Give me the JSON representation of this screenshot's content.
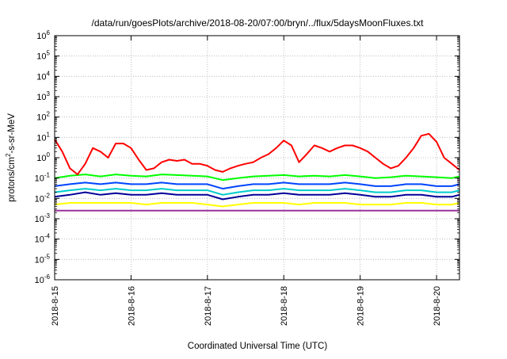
{
  "chart_data": {
    "type": "line",
    "title": "/data/run/goesPlots/archive/2018-08-20/07:00/bryn/../flux/5daysMoonFluxes.txt",
    "xlabel": "Coordinated Universal Time (UTC)",
    "ylabel": {
      "prefix": "protons/cm",
      "sup": "2",
      "suffix": "-s-sr-MeV"
    },
    "yscale": "log",
    "ylim_exp": [
      -6,
      6
    ],
    "y_ticks": [
      {
        "base": "10",
        "exp": "6"
      },
      {
        "base": "10",
        "exp": "5"
      },
      {
        "base": "10",
        "exp": "4"
      },
      {
        "base": "10",
        "exp": "3"
      },
      {
        "base": "10",
        "exp": "2"
      },
      {
        "base": "10",
        "exp": "1"
      },
      {
        "base": "10",
        "exp": "0"
      },
      {
        "base": "10",
        "exp": "-1"
      },
      {
        "base": "10",
        "exp": "-2"
      },
      {
        "base": "10",
        "exp": "-3"
      },
      {
        "base": "10",
        "exp": "-4"
      },
      {
        "base": "10",
        "exp": "-5"
      },
      {
        "base": "10",
        "exp": "-6"
      }
    ],
    "x_day_range": [
      15,
      20.3
    ],
    "x_ticks": [
      {
        "label": "2018-8-15",
        "day": 15
      },
      {
        "label": "2018-8-16",
        "day": 16
      },
      {
        "label": "2018-8-17",
        "day": 17
      },
      {
        "label": "2018-8-18",
        "day": 18
      },
      {
        "label": "2018-8-19",
        "day": 19
      },
      {
        "label": "2018-8-20",
        "day": 20
      }
    ],
    "grid": true,
    "series": [
      {
        "color": "#ff0000",
        "x": [
          15.0,
          15.1,
          15.2,
          15.3,
          15.4,
          15.5,
          15.6,
          15.7,
          15.8,
          15.9,
          16.0,
          16.1,
          16.2,
          16.3,
          16.4,
          16.5,
          16.6,
          16.7,
          16.8,
          16.9,
          17.0,
          17.1,
          17.2,
          17.3,
          17.4,
          17.5,
          17.6,
          17.7,
          17.8,
          17.9,
          18.0,
          18.1,
          18.2,
          18.3,
          18.4,
          18.5,
          18.6,
          18.7,
          18.8,
          18.9,
          19.0,
          19.1,
          19.2,
          19.3,
          19.4,
          19.5,
          19.6,
          19.7,
          19.8,
          19.9,
          20.0,
          20.1,
          20.2,
          20.3
        ],
        "y": [
          8,
          2,
          0.3,
          0.15,
          0.5,
          3,
          2,
          1,
          5,
          5,
          3,
          0.8,
          0.25,
          0.3,
          0.6,
          0.8,
          0.7,
          0.8,
          0.5,
          0.5,
          0.4,
          0.25,
          0.2,
          0.3,
          0.4,
          0.5,
          0.6,
          1,
          1.5,
          3,
          7,
          4,
          0.6,
          1.5,
          4,
          3,
          2,
          3,
          4,
          4,
          3,
          2,
          1,
          0.5,
          0.3,
          0.4,
          1,
          3,
          12,
          15,
          6,
          1,
          0.5,
          0.25
        ]
      },
      {
        "color": "#00ff00",
        "x": [
          15.0,
          15.2,
          15.4,
          15.6,
          15.8,
          16.0,
          16.2,
          16.4,
          16.6,
          16.8,
          17.0,
          17.2,
          17.4,
          17.6,
          17.8,
          18.0,
          18.2,
          18.4,
          18.6,
          18.8,
          19.0,
          19.2,
          19.4,
          19.6,
          19.8,
          20.0,
          20.2,
          20.3
        ],
        "y": [
          0.1,
          0.13,
          0.15,
          0.12,
          0.15,
          0.13,
          0.12,
          0.15,
          0.14,
          0.13,
          0.12,
          0.08,
          0.1,
          0.12,
          0.13,
          0.14,
          0.12,
          0.13,
          0.12,
          0.14,
          0.12,
          0.1,
          0.11,
          0.13,
          0.12,
          0.11,
          0.1,
          0.12
        ]
      },
      {
        "color": "#0044ff",
        "x": [
          15.0,
          15.2,
          15.4,
          15.6,
          15.8,
          16.0,
          16.2,
          16.4,
          16.6,
          16.8,
          17.0,
          17.2,
          17.4,
          17.6,
          17.8,
          18.0,
          18.2,
          18.4,
          18.6,
          18.8,
          19.0,
          19.2,
          19.4,
          19.6,
          19.8,
          20.0,
          20.2,
          20.3
        ],
        "y": [
          0.04,
          0.05,
          0.06,
          0.05,
          0.06,
          0.05,
          0.05,
          0.06,
          0.05,
          0.05,
          0.05,
          0.03,
          0.04,
          0.05,
          0.05,
          0.06,
          0.05,
          0.05,
          0.05,
          0.06,
          0.05,
          0.04,
          0.04,
          0.05,
          0.05,
          0.04,
          0.04,
          0.05
        ]
      },
      {
        "color": "#00cccc",
        "x": [
          15.0,
          15.2,
          15.4,
          15.6,
          15.8,
          16.0,
          16.2,
          16.4,
          16.6,
          16.8,
          17.0,
          17.2,
          17.4,
          17.6,
          17.8,
          18.0,
          18.2,
          18.4,
          18.6,
          18.8,
          19.0,
          19.2,
          19.4,
          19.6,
          19.8,
          20.0,
          20.2,
          20.3
        ],
        "y": [
          0.02,
          0.025,
          0.03,
          0.025,
          0.03,
          0.025,
          0.025,
          0.03,
          0.025,
          0.025,
          0.025,
          0.015,
          0.02,
          0.025,
          0.025,
          0.03,
          0.025,
          0.025,
          0.025,
          0.03,
          0.025,
          0.02,
          0.02,
          0.025,
          0.025,
          0.02,
          0.02,
          0.025
        ]
      },
      {
        "color": "#000099",
        "x": [
          15.0,
          15.2,
          15.4,
          15.6,
          15.8,
          16.0,
          16.2,
          16.4,
          16.6,
          16.8,
          17.0,
          17.2,
          17.4,
          17.6,
          17.8,
          18.0,
          18.2,
          18.4,
          18.6,
          18.8,
          19.0,
          19.2,
          19.4,
          19.6,
          19.8,
          20.0,
          20.2,
          20.3
        ],
        "y": [
          0.012,
          0.015,
          0.02,
          0.015,
          0.018,
          0.015,
          0.015,
          0.018,
          0.015,
          0.015,
          0.015,
          0.009,
          0.012,
          0.015,
          0.015,
          0.018,
          0.015,
          0.015,
          0.015,
          0.018,
          0.015,
          0.012,
          0.012,
          0.015,
          0.015,
          0.012,
          0.012,
          0.015
        ]
      },
      {
        "color": "#ffff00",
        "x": [
          15.0,
          15.2,
          15.4,
          15.6,
          15.8,
          16.0,
          16.2,
          16.4,
          16.6,
          16.8,
          17.0,
          17.2,
          17.4,
          17.6,
          17.8,
          18.0,
          18.2,
          18.4,
          18.6,
          18.8,
          19.0,
          19.2,
          19.4,
          19.6,
          19.8,
          20.0,
          20.2,
          20.3
        ],
        "y": [
          0.005,
          0.006,
          0.006,
          0.006,
          0.006,
          0.006,
          0.005,
          0.006,
          0.006,
          0.006,
          0.005,
          0.004,
          0.005,
          0.006,
          0.006,
          0.006,
          0.005,
          0.006,
          0.006,
          0.006,
          0.005,
          0.005,
          0.005,
          0.006,
          0.006,
          0.005,
          0.005,
          0.006
        ]
      },
      {
        "color": "#993399",
        "x": [
          15.0,
          15.2,
          15.4,
          15.6,
          15.8,
          16.0,
          16.2,
          16.4,
          16.6,
          16.8,
          17.0,
          17.2,
          17.4,
          17.6,
          17.8,
          18.0,
          18.2,
          18.4,
          18.6,
          18.8,
          19.0,
          19.2,
          19.4,
          19.6,
          19.8,
          20.0,
          20.2,
          20.3
        ],
        "y": [
          0.0025,
          0.0025,
          0.0025,
          0.0025,
          0.0025,
          0.0025,
          0.0025,
          0.0025,
          0.0025,
          0.0025,
          0.0025,
          0.0025,
          0.0025,
          0.0025,
          0.0025,
          0.0025,
          0.0025,
          0.0025,
          0.0025,
          0.0025,
          0.0025,
          0.0025,
          0.0025,
          0.0025,
          0.0025,
          0.0025,
          0.0025,
          0.0025
        ]
      }
    ]
  }
}
